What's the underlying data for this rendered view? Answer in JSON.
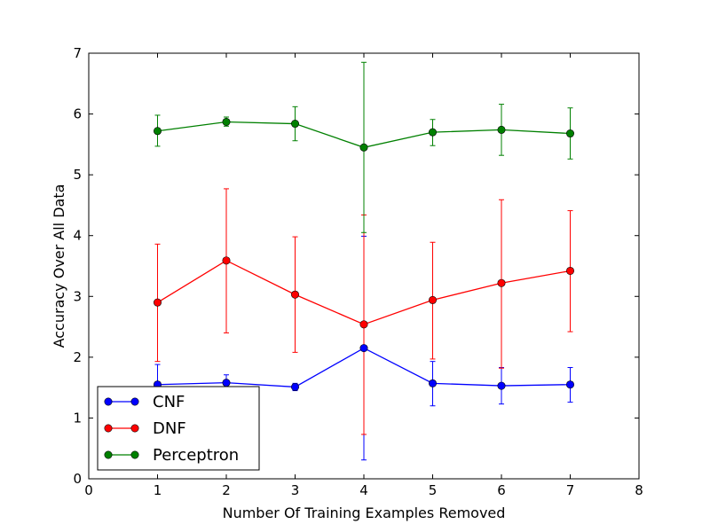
{
  "chart_data": {
    "type": "line",
    "title": "",
    "xlabel": "Number Of Training Examples Removed",
    "ylabel": "Accuracy Over All Data",
    "xlim": [
      0,
      8
    ],
    "ylim": [
      0,
      7
    ],
    "xticks": [
      "0",
      "1",
      "2",
      "3",
      "4",
      "5",
      "6",
      "7",
      "8"
    ],
    "yticks": [
      "0",
      "1",
      "2",
      "3",
      "4",
      "5",
      "6",
      "7"
    ],
    "grid": false,
    "legend_position": "lower-left",
    "x": [
      1,
      2,
      3,
      4,
      5,
      6,
      7
    ],
    "series": [
      {
        "name": "CNF",
        "color": "#0000ff",
        "values": [
          1.55,
          1.58,
          1.51,
          2.15,
          1.57,
          1.53,
          1.55
        ],
        "err_low": [
          1.21,
          1.47,
          1.45,
          0.31,
          1.2,
          1.23,
          1.26
        ],
        "err_high": [
          1.88,
          1.71,
          1.57,
          3.99,
          1.93,
          1.83,
          1.83
        ]
      },
      {
        "name": "DNF",
        "color": "#ff0000",
        "values": [
          2.9,
          3.59,
          3.03,
          2.54,
          2.94,
          3.22,
          3.42
        ],
        "err_low": [
          1.93,
          2.4,
          2.08,
          0.73,
          1.97,
          1.82,
          2.42
        ],
        "err_high": [
          3.86,
          4.77,
          3.98,
          4.34,
          3.89,
          4.59,
          4.41
        ]
      },
      {
        "name": "Perceptron",
        "color": "#008000",
        "values": [
          5.72,
          5.87,
          5.84,
          5.45,
          5.7,
          5.74,
          5.68
        ],
        "err_low": [
          5.47,
          5.8,
          5.56,
          4.05,
          5.48,
          5.32,
          5.26
        ],
        "err_high": [
          5.98,
          5.95,
          6.12,
          6.85,
          5.91,
          6.16,
          6.1
        ]
      }
    ]
  }
}
